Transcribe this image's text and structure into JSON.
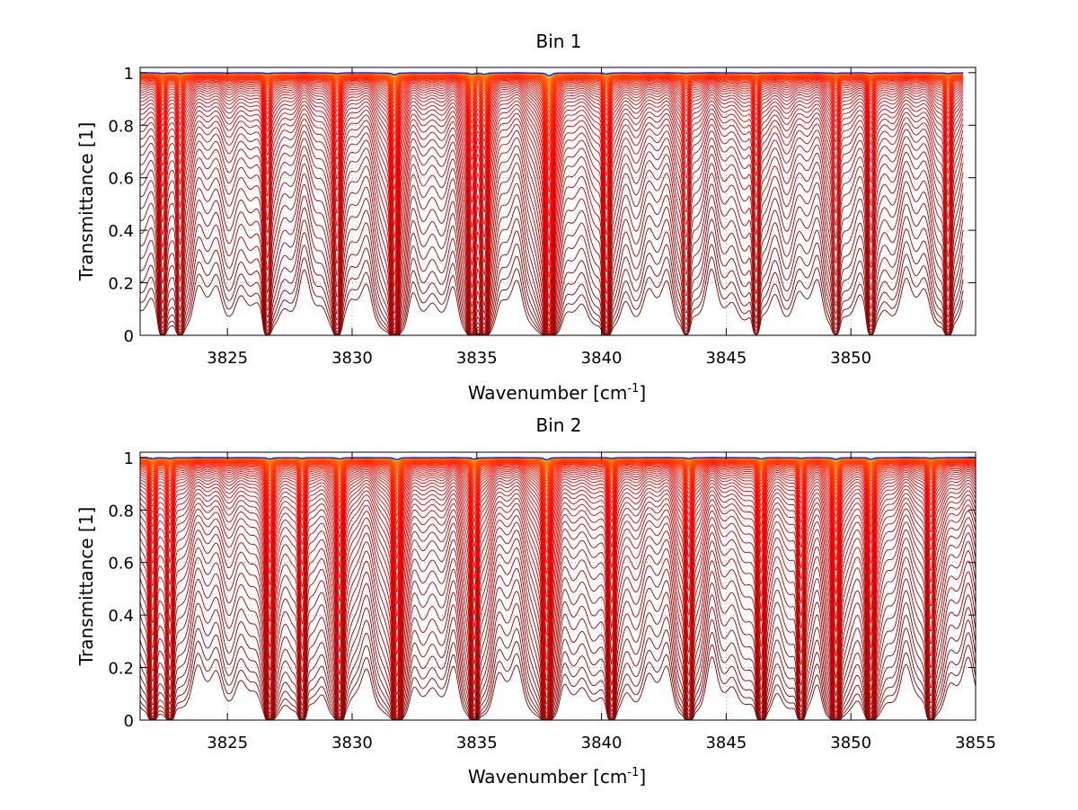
{
  "figure": {
    "background": "#ffffff"
  },
  "chart_data": [
    {
      "type": "line",
      "title": "Bin 1",
      "xlabel": "Wavenumber [cm",
      "xlabel_sup": "-1",
      "xlabel_end": "]",
      "ylabel": "Transmittance [1]",
      "xlim": [
        3821.5,
        3855.0
      ],
      "ylim": [
        0,
        1.02
      ],
      "x_data_end": 3854.5,
      "xticks": [
        3825,
        3830,
        3835,
        3840,
        3845,
        3850
      ],
      "xtick_labels": [
        "3825",
        "3830",
        "3835",
        "3840",
        "3845",
        "3850"
      ],
      "yticks": [
        0,
        0.2,
        0.4,
        0.6,
        0.8,
        1
      ],
      "ytick_labels": [
        "0",
        "0.2",
        "0.4",
        "0.6",
        "0.8",
        "1"
      ],
      "grid": true,
      "colormap": "jet",
      "n_series": 60,
      "absorption_lines": [
        {
          "x": 3822.4,
          "depth": 0.5
        },
        {
          "x": 3823.1,
          "depth": 0.45
        },
        {
          "x": 3826.6,
          "depth": 0.5
        },
        {
          "x": 3829.4,
          "depth": 0.5
        },
        {
          "x": 3831.7,
          "depth": 1.4
        },
        {
          "x": 3834.8,
          "depth": 1.0
        },
        {
          "x": 3835.3,
          "depth": 0.9
        },
        {
          "x": 3837.9,
          "depth": 2.2
        },
        {
          "x": 3840.2,
          "depth": 0.9
        },
        {
          "x": 3843.4,
          "depth": 0.35
        },
        {
          "x": 3846.2,
          "depth": 0.4
        },
        {
          "x": 3849.4,
          "depth": 0.35
        },
        {
          "x": 3850.8,
          "depth": 0.4
        },
        {
          "x": 3853.9,
          "depth": 0.6
        }
      ]
    },
    {
      "type": "line",
      "title": "Bin 2",
      "xlabel": "Wavenumber [cm",
      "xlabel_sup": "-1",
      "xlabel_end": "]",
      "ylabel": "Transmittance [1]",
      "xlim": [
        3821.5,
        3855.0
      ],
      "ylim": [
        0,
        1.02
      ],
      "x_data_end": 3855.0,
      "xticks": [
        3825,
        3830,
        3835,
        3840,
        3845,
        3850,
        3855
      ],
      "xtick_labels": [
        "3825",
        "3830",
        "3835",
        "3840",
        "3845",
        "3850",
        "3855"
      ],
      "yticks": [
        0,
        0.2,
        0.4,
        0.6,
        0.8,
        1
      ],
      "ytick_labels": [
        "0",
        "0.2",
        "0.4",
        "0.6",
        "0.8",
        "1"
      ],
      "grid": true,
      "colormap": "jet",
      "n_series": 60,
      "absorption_lines": [
        {
          "x": 3822.0,
          "depth": 0.8
        },
        {
          "x": 3822.7,
          "depth": 0.6
        },
        {
          "x": 3826.7,
          "depth": 1.0
        },
        {
          "x": 3828.0,
          "depth": 0.7
        },
        {
          "x": 3829.5,
          "depth": 0.9
        },
        {
          "x": 3831.8,
          "depth": 1.5
        },
        {
          "x": 3834.9,
          "depth": 1.1
        },
        {
          "x": 3837.8,
          "depth": 1.6
        },
        {
          "x": 3840.4,
          "depth": 0.7
        },
        {
          "x": 3843.5,
          "depth": 0.8
        },
        {
          "x": 3846.4,
          "depth": 0.9
        },
        {
          "x": 3848.0,
          "depth": 0.6
        },
        {
          "x": 3849.4,
          "depth": 1.3
        },
        {
          "x": 3850.8,
          "depth": 1.2
        },
        {
          "x": 3853.2,
          "depth": 0.6
        }
      ]
    }
  ]
}
